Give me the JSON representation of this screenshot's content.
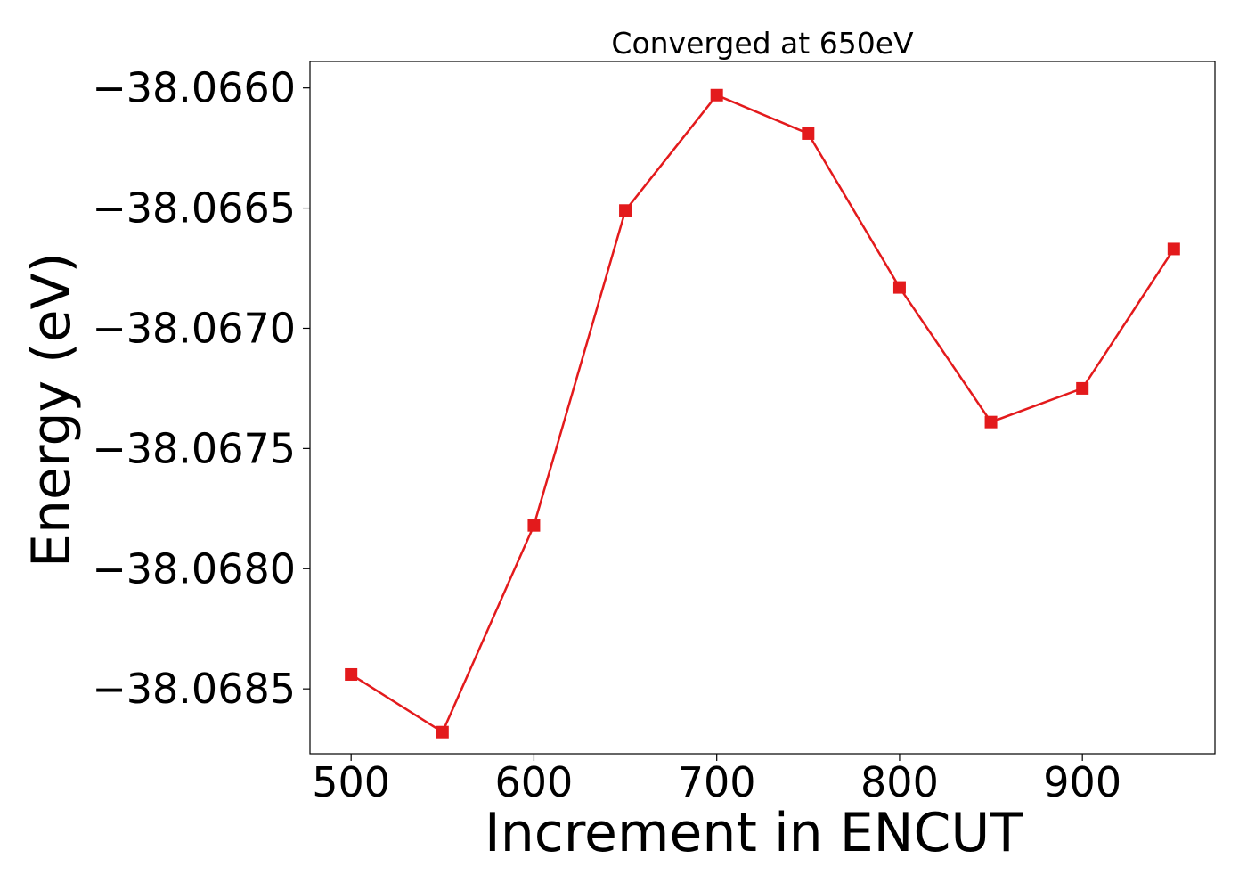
{
  "chart_data": {
    "type": "line",
    "title": "Converged at 650eV",
    "xlabel": "Increment in ENCUT",
    "ylabel": "Energy (eV)",
    "x": [
      500,
      550,
      600,
      650,
      700,
      750,
      800,
      850,
      900,
      950
    ],
    "series": [
      {
        "values": [
          -38.06844,
          -38.06868,
          -38.06782,
          -38.06651,
          -38.06603,
          -38.06619,
          -38.06683,
          -38.06739,
          -38.06725,
          -38.06667
        ],
        "color": "#e31a1c",
        "marker": "square"
      }
    ],
    "xlim": [
      477.5,
      972.5
    ],
    "ylim": [
      -38.06877,
      -38.06589
    ],
    "xticks": [
      500,
      600,
      700,
      800,
      900
    ],
    "xtick_labels": [
      "500",
      "600",
      "700",
      "800",
      "900"
    ],
    "yticks": [
      -38.066,
      -38.0665,
      -38.067,
      -38.0675,
      -38.068,
      -38.0685
    ],
    "ytick_labels": [
      "−38.0660",
      "−38.0665",
      "−38.0670",
      "−38.0675",
      "−38.0680",
      "−38.0685"
    ],
    "grid": false,
    "legend": "none"
  }
}
